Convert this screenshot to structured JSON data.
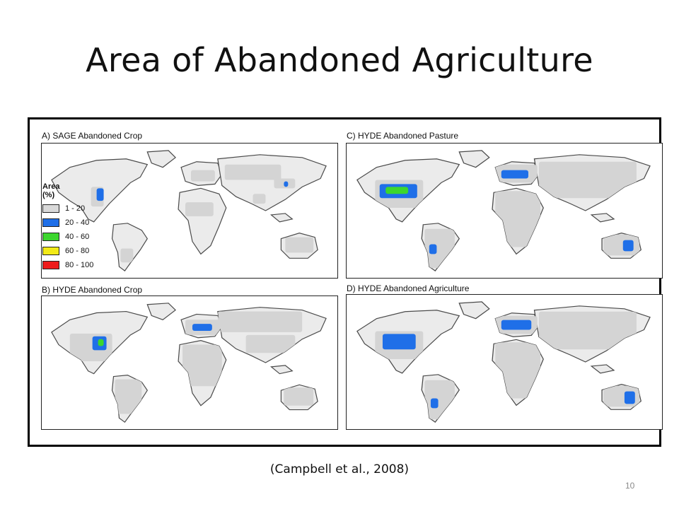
{
  "slide": {
    "title": "Area of Abandoned Agriculture",
    "citation": "(Campbell et al., 2008)",
    "page_number": "10"
  },
  "figure": {
    "panels": [
      {
        "id": "a",
        "label": "A) SAGE Abandoned Crop"
      },
      {
        "id": "b",
        "label": "B) HYDE Abandoned Crop"
      },
      {
        "id": "c",
        "label": "C) HYDE Abandoned Pasture"
      },
      {
        "id": "d",
        "label": "D) HYDE Abandoned Agriculture"
      }
    ],
    "legend": {
      "title_line1": "Area",
      "title_line2": "(%)",
      "classes": [
        {
          "label": "1 - 20",
          "color": "#d9d9d9"
        },
        {
          "label": "20 - 40",
          "color": "#1f6fe8"
        },
        {
          "label": "40 - 60",
          "color": "#3cd62e"
        },
        {
          "label": "60 - 80",
          "color": "#f2ea17"
        },
        {
          "label": "80 - 100",
          "color": "#ee1c1c"
        }
      ]
    }
  },
  "colors": {
    "land": "#ebebeb",
    "coast": "#4a4a4a",
    "abandoned_low": "#d4d4d4",
    "abandoned_20_40": "#1f6fe8",
    "abandoned_40_60": "#3cd62e"
  }
}
